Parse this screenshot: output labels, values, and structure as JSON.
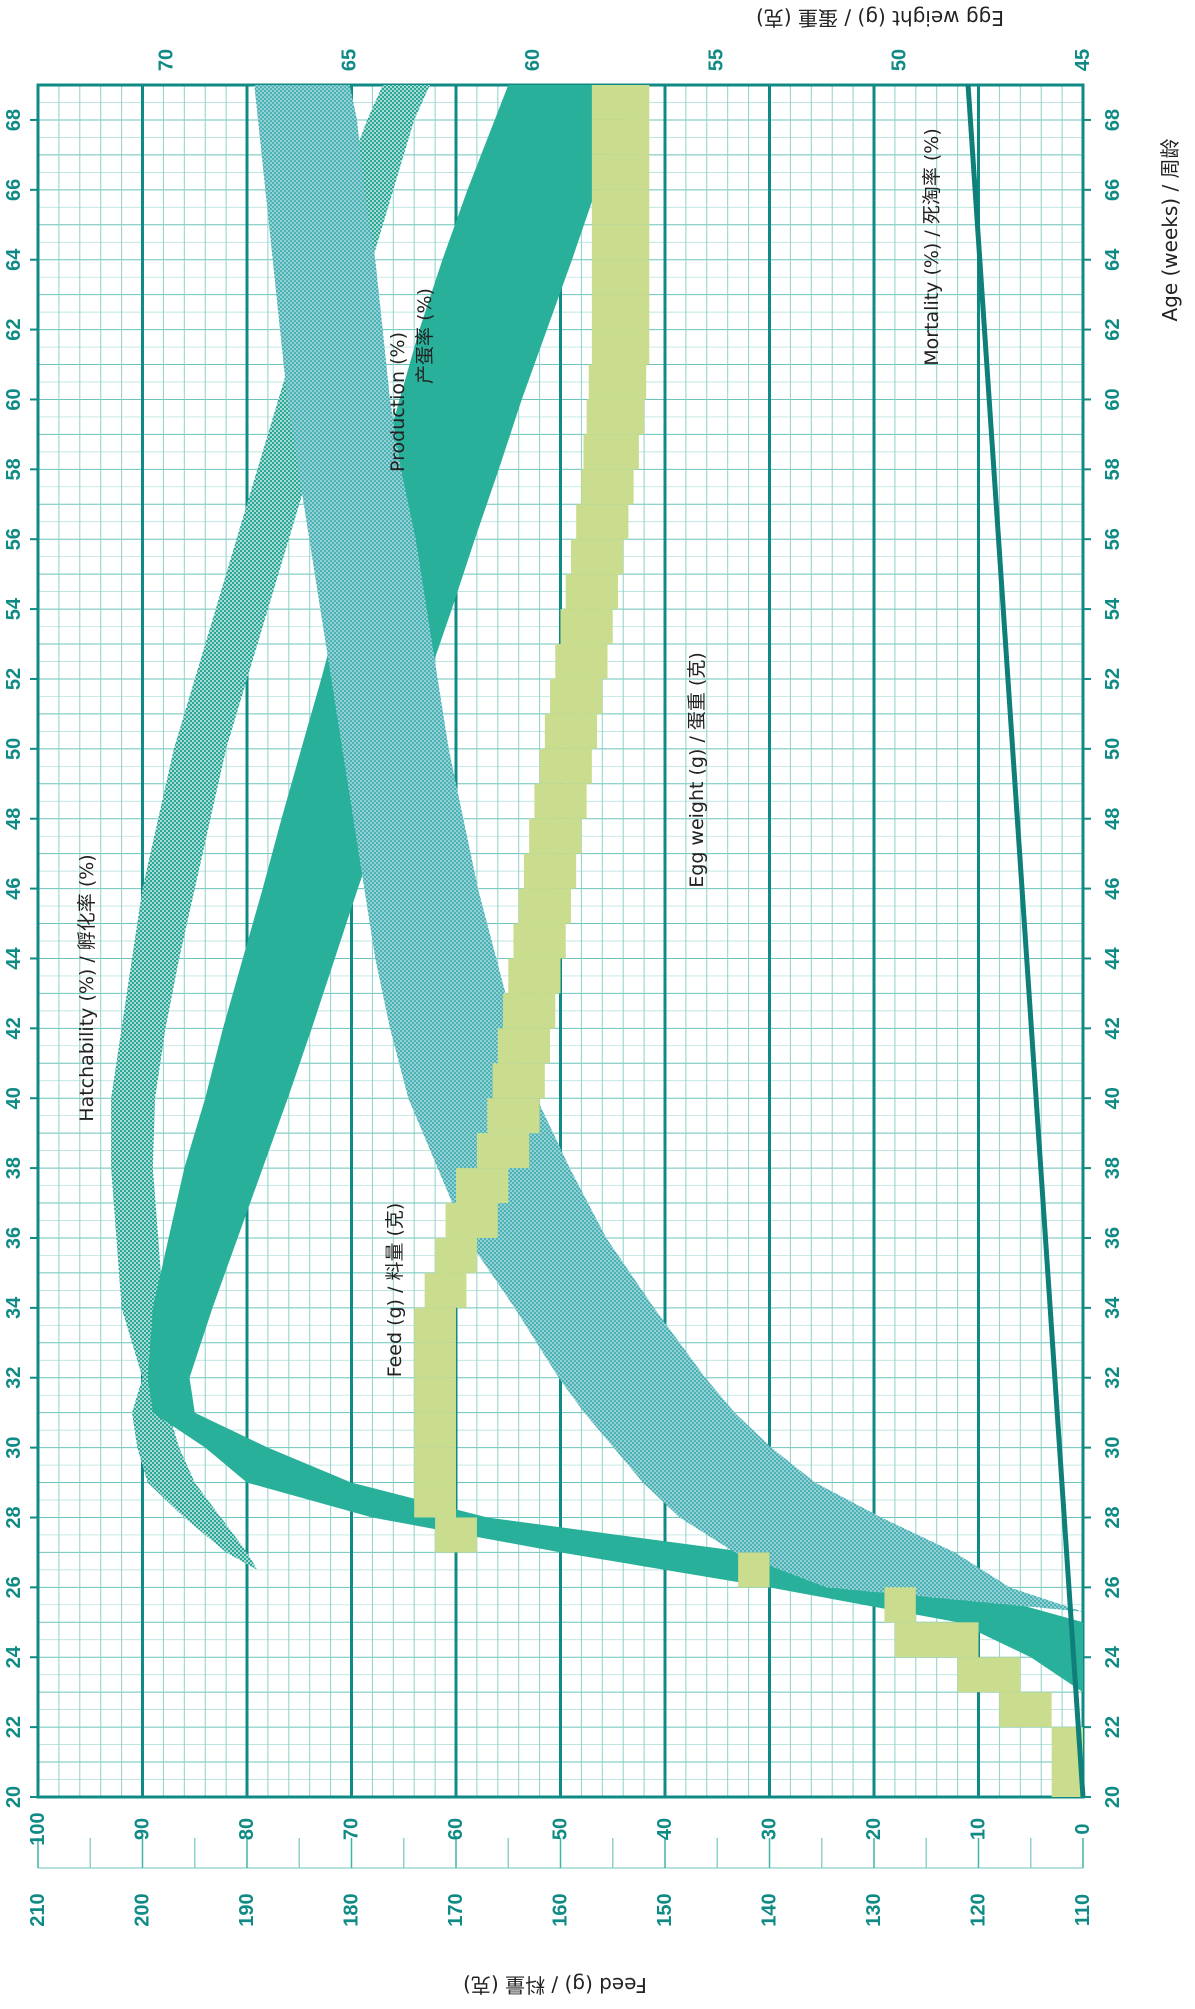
{
  "chart_data": {
    "type": "area",
    "orientation": "rotated-90-clockwise",
    "title": "",
    "x_axis": {
      "label": "Age (weeks) / 周龄",
      "range": [
        20,
        69
      ],
      "ticks": [
        20,
        22,
        24,
        26,
        28,
        30,
        32,
        34,
        36,
        38,
        40,
        42,
        44,
        46,
        48,
        50,
        52,
        54,
        56,
        58,
        60,
        62,
        64,
        66,
        68
      ]
    },
    "y_axis_percent": {
      "range": [
        0,
        100
      ],
      "ticks": [
        0,
        10,
        20,
        30,
        40,
        50,
        60,
        70,
        80,
        90,
        100
      ]
    },
    "y_axis_egg_weight": {
      "label": "Egg weight (g) / 蛋重 (克)",
      "range": [
        45,
        73.5
      ],
      "ticks": [
        45,
        50,
        55,
        60,
        65,
        70
      ]
    },
    "y_axis_feed": {
      "label": "Feed (g) / 料量 (克)",
      "range": [
        110,
        210
      ],
      "ticks": [
        110,
        120,
        130,
        140,
        150,
        160,
        170,
        180,
        190,
        200,
        210
      ]
    },
    "grid": true,
    "series": [
      {
        "name": "Hatchability (%) / 孵化率 (%)",
        "axis": "percent",
        "color": "#29b09a",
        "pattern": "dotted",
        "x": [
          26.5,
          27,
          28,
          29,
          30,
          31,
          32,
          34,
          36,
          38,
          40,
          42,
          44,
          46,
          48,
          50,
          52,
          54,
          56,
          58,
          60,
          62,
          64,
          66,
          68,
          69
        ],
        "upper": [
          79,
          82,
          86,
          89.5,
          90.5,
          91,
          90,
          92,
          92.5,
          93,
          93,
          92,
          91,
          90,
          88.5,
          87,
          85,
          83,
          81,
          79,
          77,
          75,
          73,
          71,
          68.5,
          67
        ],
        "lower": [
          79,
          80,
          82.5,
          85,
          86.5,
          87.5,
          86.5,
          88,
          88.5,
          89,
          88.8,
          87.8,
          86.5,
          85,
          83.5,
          82,
          80,
          78,
          76,
          74,
          72,
          70,
          68,
          66,
          64,
          62.5
        ]
      },
      {
        "name": "Production (%) / 产蛋率 (%)",
        "axis": "percent",
        "color": "#29b09a",
        "pattern": "solid",
        "x": [
          23,
          24,
          25,
          26,
          27,
          28,
          29,
          30,
          31,
          32,
          34,
          36,
          38,
          40,
          42,
          44,
          46,
          48,
          50,
          52,
          54,
          56,
          58,
          60,
          62,
          64,
          66,
          68,
          69
        ],
        "upper": [
          0,
          5,
          12,
          30,
          50,
          68,
          80,
          84,
          89,
          89.5,
          89,
          87.5,
          86,
          84,
          82.3,
          80.4,
          78.5,
          76.7,
          74.8,
          72.9,
          71.1,
          69.2,
          67.3,
          65.4,
          63.5,
          61.3,
          58.9,
          56.3,
          55
        ],
        "lower": [
          0,
          0,
          0,
          12,
          32,
          57,
          70,
          78,
          85,
          85.5,
          83.3,
          80.9,
          78.5,
          76.1,
          73.8,
          71.6,
          69.4,
          67.1,
          64.9,
          62.7,
          60.4,
          58.2,
          55.9,
          53.7,
          51.3,
          48.9,
          46.6,
          43.8,
          42.5
        ]
      },
      {
        "name": "Egg weight (g) / 蛋重 (克)",
        "axis": "egg_weight",
        "color": "#4fb4b8",
        "pattern": "dotted",
        "x": [
          25.3,
          26,
          27,
          28,
          29,
          30,
          31,
          32,
          34,
          36,
          38,
          40,
          42,
          44,
          46,
          48,
          50,
          52,
          54,
          56,
          58,
          60,
          62,
          64,
          66,
          68,
          69
        ],
        "upper": [
          45,
          52,
          54.5,
          56,
          57,
          57.8,
          58.6,
          59.3,
          60.5,
          61.8,
          62.6,
          63.4,
          63.9,
          64.3,
          64.6,
          64.9,
          65.2,
          65.5,
          65.8,
          66.1,
          66.4,
          66.7,
          66.9,
          67.1,
          67.3,
          67.5,
          67.6
        ],
        "lower": [
          45,
          47,
          48.5,
          50.5,
          52.3,
          53.5,
          54.5,
          55.3,
          56.7,
          58,
          59,
          59.9,
          60.5,
          61,
          61.5,
          61.9,
          62.3,
          62.6,
          62.9,
          63.2,
          63.6,
          63.9,
          64.1,
          64.3,
          64.6,
          64.8,
          65
        ]
      },
      {
        "name": "Feed (g) / 料量 (克)",
        "axis": "feed",
        "color": "#cdde90",
        "pattern": "solid",
        "x": [
          20,
          22,
          23,
          24,
          25,
          26,
          27,
          28,
          29,
          30,
          31,
          32,
          33,
          34,
          35,
          36,
          37,
          38,
          39,
          40,
          41,
          42,
          43,
          44,
          45,
          46,
          47,
          48,
          49,
          50,
          51,
          52,
          53,
          54,
          55,
          56,
          57,
          58,
          59,
          60,
          61,
          62,
          63,
          64,
          65,
          66,
          67,
          68,
          69
        ],
        "upper": [
          113,
          118,
          122,
          128,
          129,
          143,
          172,
          174,
          174,
          174,
          174,
          174,
          174,
          173,
          172,
          171,
          170,
          168,
          167,
          166.5,
          166,
          165.5,
          165,
          164.5,
          164,
          163.5,
          163,
          162.5,
          162,
          161.5,
          161,
          160.5,
          160,
          159.5,
          159,
          158.5,
          158,
          157.8,
          157.5,
          157.3,
          157,
          157,
          157,
          157,
          157,
          157,
          157,
          157,
          157
        ],
        "lower": [
          110,
          113,
          116,
          120,
          126,
          140,
          168,
          170,
          170,
          170,
          170,
          170,
          170,
          169,
          168,
          166,
          165,
          163,
          162,
          161.5,
          161,
          160.5,
          160,
          159.5,
          159,
          158.5,
          158,
          157.5,
          157,
          156.5,
          156,
          155.5,
          155,
          154.5,
          154,
          153.5,
          153,
          152.5,
          152,
          151.8,
          151.5,
          151.5,
          151.5,
          151.5,
          151.5,
          151.5,
          151.5,
          151.5,
          151.5
        ]
      },
      {
        "name": "Mortality (%) / 死淘率 (%)",
        "axis": "percent",
        "color": "#0f7f7a",
        "pattern": "line",
        "x": [
          20,
          69
        ],
        "y": [
          0,
          11
        ]
      }
    ]
  }
}
